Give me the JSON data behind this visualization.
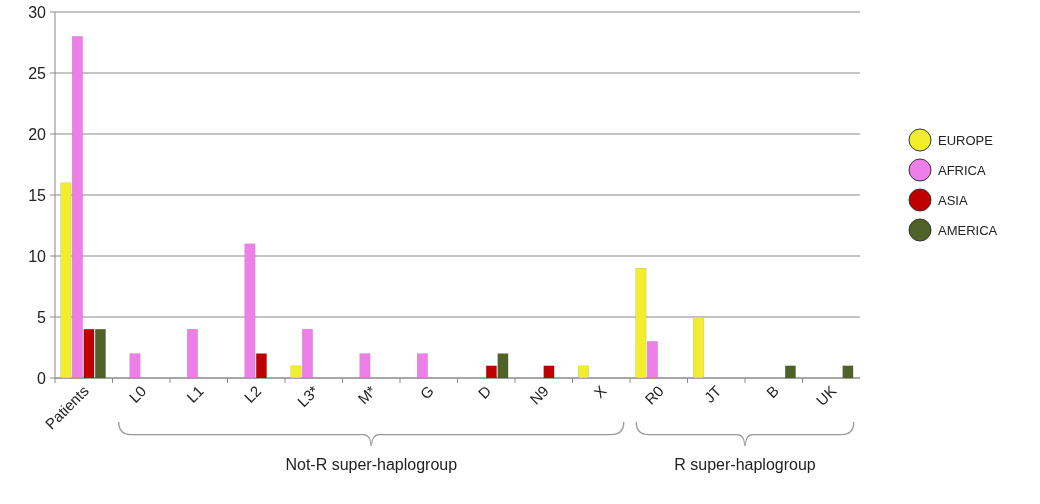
{
  "chart_data": {
    "type": "bar",
    "categories": [
      "Patients",
      "L0",
      "L1",
      "L2",
      "L3*",
      "M*",
      "G",
      "D",
      "N9",
      "X",
      "R0",
      "JT",
      "B",
      "UK"
    ],
    "series": [
      {
        "name": "EUROPE",
        "color": "#f2ee2e",
        "values": [
          16,
          0,
          0,
          0,
          1,
          0,
          0,
          0,
          0,
          1,
          9,
          5,
          0,
          0
        ]
      },
      {
        "name": "AFRICA",
        "color": "#ee7fe8",
        "values": [
          28,
          2,
          4,
          11,
          4,
          2,
          2,
          0,
          0,
          0,
          3,
          0,
          0,
          0
        ]
      },
      {
        "name": "ASIA",
        "color": "#c00000",
        "values": [
          4,
          0,
          0,
          2,
          0,
          0,
          0,
          1,
          1,
          0,
          0,
          0,
          0,
          0
        ]
      },
      {
        "name": "AMERICA",
        "color": "#4f6228",
        "values": [
          4,
          0,
          0,
          0,
          0,
          0,
          0,
          2,
          0,
          0,
          0,
          0,
          1,
          1
        ]
      }
    ],
    "ylim": [
      0,
      30
    ],
    "yticks": [
      0,
      5,
      10,
      15,
      20,
      25,
      30
    ],
    "grid": "y",
    "legend": "right",
    "annotations": [
      "Not-R super-haplogroup",
      "R super-haplogroup"
    ]
  }
}
